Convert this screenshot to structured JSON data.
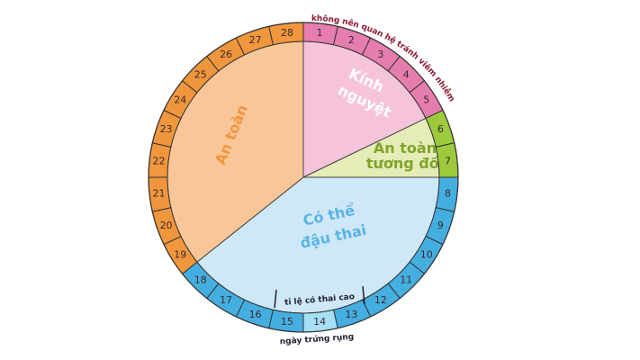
{
  "title_note": "không nên quan hệ tránh viêm nhiễm",
  "ovulation_note": "ngày trứng rụng",
  "high_chance_note": "tỉ lệ có thai cao",
  "highlight_color": "#a6e0f6",
  "phases": [
    {
      "lines": [
        "Kính",
        "nguyệt"
      ],
      "fill": "#f6c4da",
      "ring": "#e57eae",
      "text_color": "#ffffff",
      "days": [
        1,
        2,
        3,
        4,
        5
      ]
    },
    {
      "lines": [
        "An toàn",
        "tương đối"
      ],
      "fill": "#e6ecb8",
      "ring": "#9dca3c",
      "text_color": "#7ea52a",
      "days": [
        6,
        7
      ]
    },
    {
      "lines": [
        "Có thể",
        "đậu thai"
      ],
      "fill": "#cfe8f7",
      "ring": "#45aee0",
      "text_color": "#5ab4e6",
      "days": [
        8,
        9,
        10,
        11,
        12,
        13,
        {
          "value": 14,
          "highlight": true
        },
        15,
        16,
        17,
        18
      ]
    },
    {
      "lines": [
        "An toàn"
      ],
      "fill": "#f8c699",
      "ring": "#f0963c",
      "text_color": "#f0963c",
      "days": [
        19,
        20,
        21,
        22,
        23,
        24,
        25,
        26,
        27,
        28
      ]
    }
  ]
}
